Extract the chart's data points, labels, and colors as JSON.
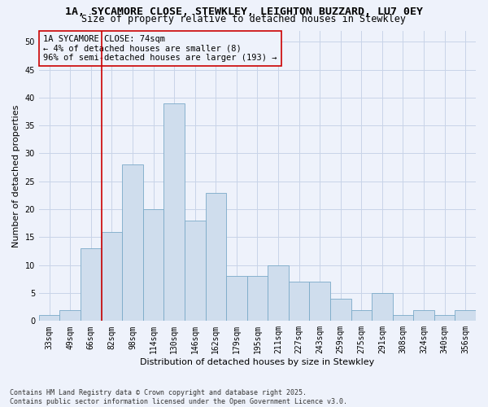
{
  "title_line1": "1A, SYCAMORE CLOSE, STEWKLEY, LEIGHTON BUZZARD, LU7 0EY",
  "title_line2": "Size of property relative to detached houses in Stewkley",
  "xlabel": "Distribution of detached houses by size in Stewkley",
  "ylabel": "Number of detached properties",
  "bins": [
    "33sqm",
    "49sqm",
    "66sqm",
    "82sqm",
    "98sqm",
    "114sqm",
    "130sqm",
    "146sqm",
    "162sqm",
    "179sqm",
    "195sqm",
    "211sqm",
    "227sqm",
    "243sqm",
    "259sqm",
    "275sqm",
    "291sqm",
    "308sqm",
    "324sqm",
    "340sqm",
    "356sqm"
  ],
  "values": [
    1,
    2,
    13,
    16,
    28,
    20,
    39,
    18,
    23,
    8,
    8,
    10,
    7,
    7,
    4,
    2,
    5,
    1,
    2,
    1,
    2
  ],
  "bar_color": "#cfdded",
  "bar_edge_color": "#7aaac8",
  "grid_color": "#c8d4e8",
  "background_color": "#eef2fb",
  "annotation_box_text": "1A SYCAMORE CLOSE: 74sqm\n← 4% of detached houses are smaller (8)\n96% of semi-detached houses are larger (193) →",
  "vline_color": "#cc0000",
  "vline_x": 2.5,
  "ylim": [
    0,
    52
  ],
  "yticks": [
    0,
    5,
    10,
    15,
    20,
    25,
    30,
    35,
    40,
    45,
    50
  ],
  "footnote": "Contains HM Land Registry data © Crown copyright and database right 2025.\nContains public sector information licensed under the Open Government Licence v3.0.",
  "title_fontsize": 9.5,
  "subtitle_fontsize": 8.5,
  "axis_label_fontsize": 8,
  "tick_fontsize": 7,
  "annot_fontsize": 7.5,
  "footnote_fontsize": 6
}
